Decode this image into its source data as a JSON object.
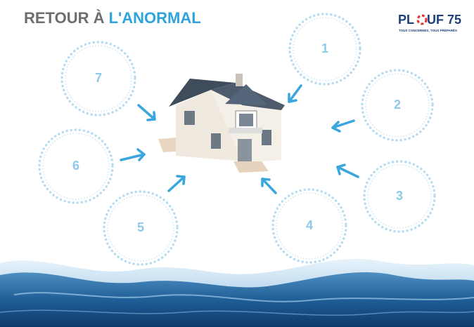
{
  "header": {
    "title_start": "RETOUR À ",
    "title_highlight": "L'ANORMAL"
  },
  "logo": {
    "left": "PL",
    "right": "UF 75",
    "tagline": "TOUS CONCERNÉS, TOUS PRÉPARÉS"
  },
  "circles": [
    {
      "label": "1"
    },
    {
      "label": "2"
    },
    {
      "label": "3"
    },
    {
      "label": "4"
    },
    {
      "label": "5"
    },
    {
      "label": "6"
    },
    {
      "label": "7"
    }
  ]
}
